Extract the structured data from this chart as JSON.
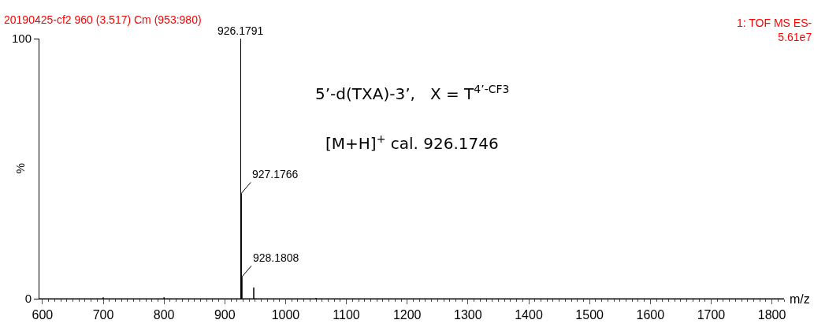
{
  "chart_data": {
    "type": "line",
    "xlabel": "m/z",
    "ylabel": "%",
    "annotations": [
      "20190425-cf2 960 (3.517) Cm (953:980)",
      "1: TOF MS ES-\n5.61e7",
      "5’-d(TXA)-3’,   X = T$^{4’-CF3}$",
      "[M+H]$^{+}$ cal. 926.1746",
      {
        "text": "926.1791",
        "x": 926.1791,
        "y": 100
      },
      {
        "text": "927.1766",
        "x": 927.1766,
        "y": 40.5
      },
      {
        "text": "928.1808",
        "x": 928.1808,
        "y": 8.4
      }
    ],
    "series": [
      {
        "color": "#000000",
        "x": [
          595,
          699.5,
          700,
          700.5,
          799.5,
          800,
          800.5,
          926.1791,
          926.1791,
          926.1791,
          927.1766,
          927.1766,
          927.1766,
          928.1808,
          928.1808,
          928.1808,
          947.6,
          947.6,
          947.6,
          1049.5,
          1050,
          1050.5,
          1820
        ],
        "values": [
          0,
          0,
          0.5,
          0,
          0,
          0.5,
          0,
          0,
          100,
          0,
          0,
          40.5,
          0,
          0,
          8.4,
          0,
          0,
          4.3,
          0,
          0,
          0.3,
          0,
          0
        ]
      }
    ],
    "xlim": [
      595,
      1820
    ],
    "xticks": [
      600,
      700,
      800,
      900,
      1000,
      1100,
      1200,
      1300,
      1400,
      1500,
      1600,
      1700,
      1800
    ],
    "ylim": [
      0,
      100
    ],
    "yticks": [
      0,
      100
    ],
    "marker": "none",
    "line_style": "solid"
  }
}
